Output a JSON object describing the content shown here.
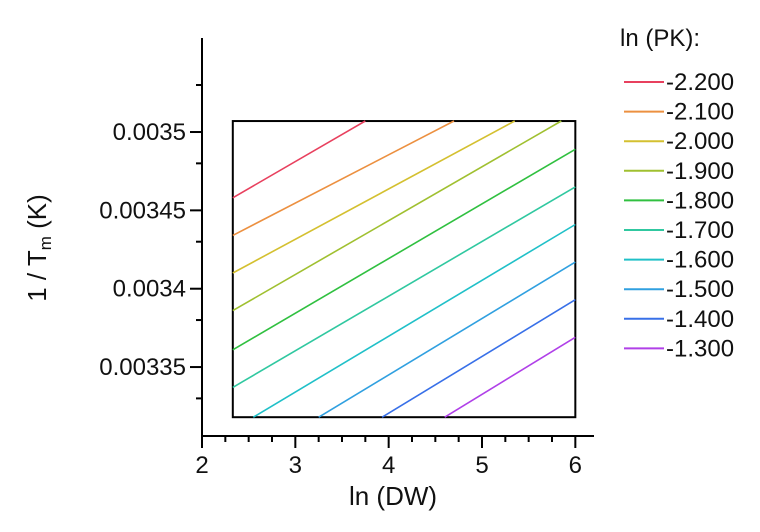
{
  "chart_data": {
    "type": "contour",
    "title": "",
    "xlabel": "ln (DW)",
    "ylabel": "1 / T",
    "ylabel_subscript": "m",
    "ylabel_unit": " (K)",
    "xlim": [
      2,
      6.2
    ],
    "ylim": [
      0.003306,
      0.00356
    ],
    "plot_xrange": [
      2.33,
      6.0
    ],
    "plot_yrange": [
      0.003318,
      0.003507
    ],
    "x_ticks": [
      2,
      3,
      4,
      5,
      6
    ],
    "x_tick_labels": [
      "2",
      "3",
      "4",
      "5",
      "6"
    ],
    "y_ticks": [
      0.00335,
      0.0034,
      0.00345,
      0.0035
    ],
    "y_tick_labels": [
      "0.00335",
      "0.0034",
      "0.00345",
      "0.0035"
    ],
    "legend_title": "ln (PK):",
    "legend_position": "right",
    "series": [
      {
        "name": "-2.200",
        "color": "#e8405e",
        "x": [
          2.33,
          3.75
        ],
        "y": [
          0.003458,
          0.003507
        ]
      },
      {
        "name": "-2.100",
        "color": "#ec9040",
        "x": [
          2.33,
          4.7
        ],
        "y": [
          0.003434,
          0.003507
        ]
      },
      {
        "name": "-2.000",
        "color": "#d4c030",
        "x": [
          2.33,
          5.35
        ],
        "y": [
          0.00341,
          0.003507
        ]
      },
      {
        "name": "-1.900",
        "color": "#a0c030",
        "x": [
          2.33,
          5.85
        ],
        "y": [
          0.003386,
          0.003507
        ]
      },
      {
        "name": "-1.800",
        "color": "#30c040",
        "x": [
          2.33,
          6.0
        ],
        "y": [
          0.003361,
          0.003489
        ]
      },
      {
        "name": "-1.700",
        "color": "#30c8a0",
        "x": [
          2.33,
          6.0
        ],
        "y": [
          0.003337,
          0.003465
        ]
      },
      {
        "name": "-1.600",
        "color": "#20c0c8",
        "x": [
          2.55,
          6.0
        ],
        "y": [
          0.003318,
          0.003441
        ]
      },
      {
        "name": "-1.500",
        "color": "#30a0e0",
        "x": [
          3.25,
          6.0
        ],
        "y": [
          0.003318,
          0.003417
        ]
      },
      {
        "name": "-1.400",
        "color": "#3870e8",
        "x": [
          3.93,
          6.0
        ],
        "y": [
          0.003318,
          0.003393
        ]
      },
      {
        "name": "-1.300",
        "color": "#b040e8",
        "x": [
          4.6,
          6.0
        ],
        "y": [
          0.003318,
          0.003369
        ]
      }
    ]
  }
}
